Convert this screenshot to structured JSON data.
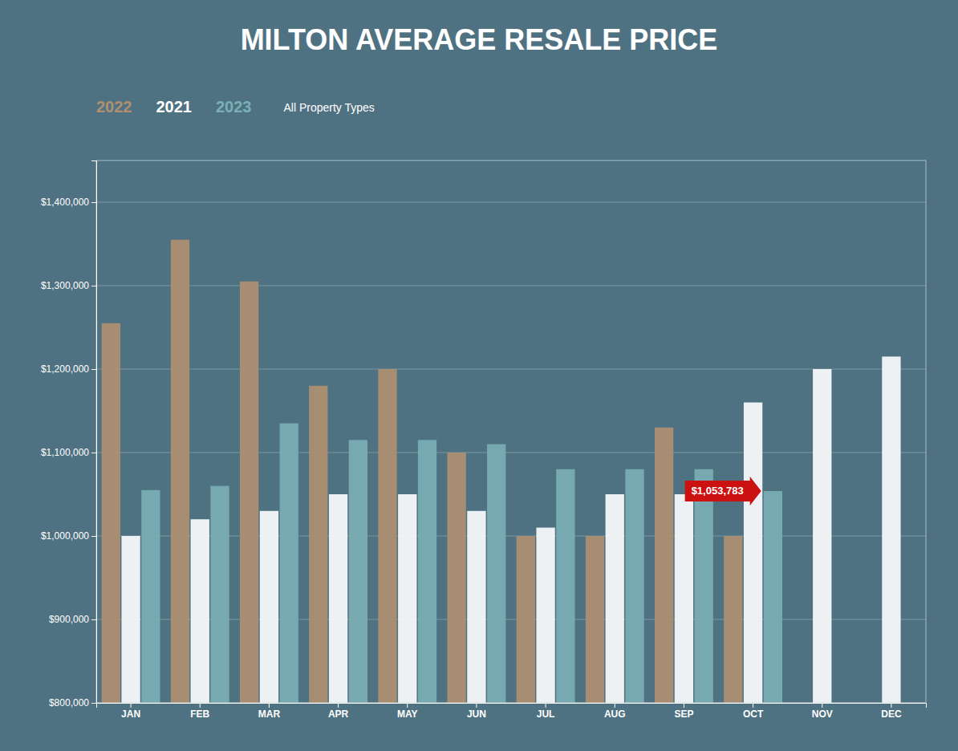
{
  "chart_data": {
    "type": "bar",
    "title": "MILTON AVERAGE RESALE PRICE",
    "subtitle": "All Property Types",
    "categories": [
      "JAN",
      "FEB",
      "MAR",
      "APR",
      "MAY",
      "JUN",
      "JUL",
      "AUG",
      "SEP",
      "OCT",
      "NOV",
      "DEC"
    ],
    "series": [
      {
        "name": "2022",
        "color": "#b09070",
        "values": [
          1255000,
          1355000,
          1305000,
          1180000,
          1200000,
          1100000,
          1000000,
          1000000,
          1130000,
          1000000,
          null,
          null
        ]
      },
      {
        "name": "2021",
        "color": "#ffffff",
        "values": [
          1000000,
          1020000,
          1030000,
          1050000,
          1050000,
          1030000,
          1010000,
          1050000,
          1050000,
          1160000,
          1200000,
          1215000
        ]
      },
      {
        "name": "2023",
        "color": "#7aafb5",
        "values": [
          1055000,
          1060000,
          1135000,
          1115000,
          1115000,
          1110000,
          1080000,
          1080000,
          1080000,
          1053783,
          null,
          null
        ]
      }
    ],
    "ylim": [
      800000,
      1450000
    ],
    "yticks": [
      {
        "value": 800000,
        "label": "$800,000"
      },
      {
        "value": 900000,
        "label": "$900,000"
      },
      {
        "value": 1000000,
        "label": "$1,000,000"
      },
      {
        "value": 1100000,
        "label": "$1,100,000"
      },
      {
        "value": 1200000,
        "label": "$1,200,000"
      },
      {
        "value": 1300000,
        "label": "$1,300,000"
      },
      {
        "value": 1400000,
        "label": "$1,400,000"
      }
    ],
    "annotations": [
      {
        "text": "$1,053,783",
        "x": "OCT",
        "y": 1053783,
        "series": "2023"
      }
    ],
    "grid": true,
    "legend": "upper left"
  }
}
